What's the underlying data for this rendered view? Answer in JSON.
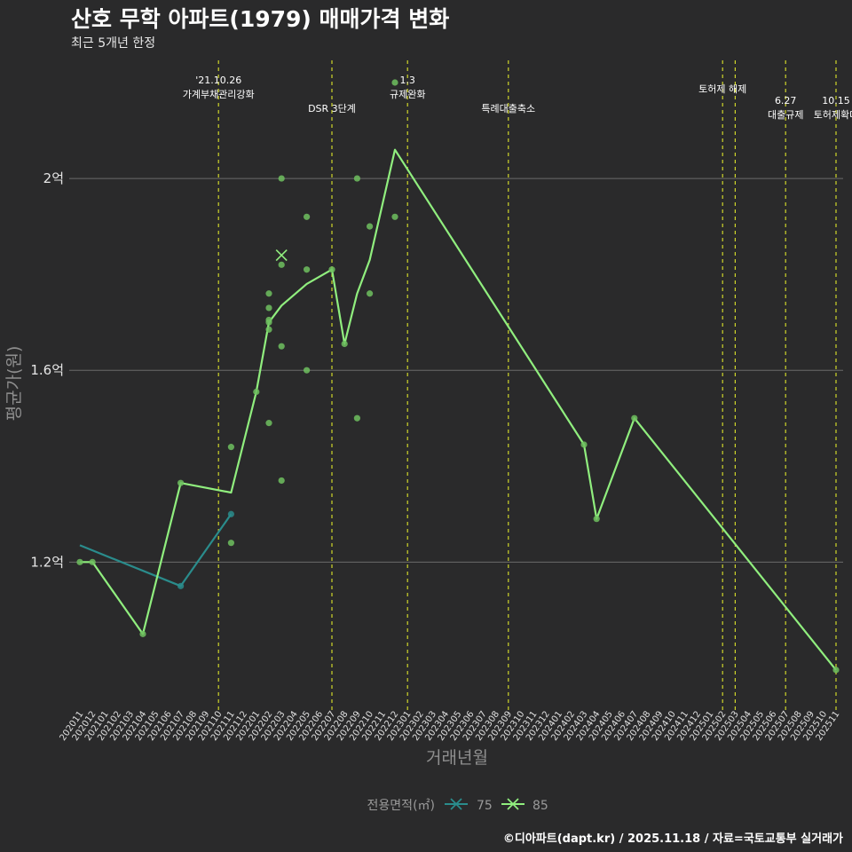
{
  "title": "산호 무학 아파트(1979) 매매가격 변화",
  "subtitle": "최근 5개년 한정",
  "caption": "©디아파트(dapt.kr) / 2025.11.18 / 자료=국토교통부 실거래가",
  "colors": {
    "background": "#2a2a2b",
    "series75": "#2a8c8c",
    "series85": "#90ee7e",
    "scatter": "#6fbf5f",
    "event_line": "#cfd62b",
    "grid": "#6b6b6b"
  },
  "chart_data": {
    "type": "line",
    "title": "산호 무학 아파트(1979) 매매가격 변화",
    "subtitle": "최근 5개년 한정",
    "xlabel": "거래년월",
    "ylabel": "평균가(원)",
    "ylim": [
      0.91,
      2.25
    ],
    "y_ticks": [
      {
        "value": 1.2,
        "label": "1.2억"
      },
      {
        "value": 1.6,
        "label": "1.6억"
      },
      {
        "value": 2.0,
        "label": "2억"
      }
    ],
    "categories": [
      "202011",
      "202012",
      "202101",
      "202102",
      "202103",
      "202104",
      "202105",
      "202106",
      "202107",
      "202108",
      "202109",
      "202110",
      "202111",
      "202112",
      "202201",
      "202202",
      "202203",
      "202204",
      "202205",
      "202206",
      "202207",
      "202208",
      "202209",
      "202210",
      "202211",
      "202212",
      "202301",
      "202302",
      "202303",
      "202304",
      "202305",
      "202306",
      "202307",
      "202308",
      "202309",
      "202310",
      "202311",
      "202312",
      "202401",
      "202402",
      "202403",
      "202404",
      "202405",
      "202406",
      "202407",
      "202408",
      "202409",
      "202410",
      "202411",
      "202412",
      "202501",
      "202502",
      "202503",
      "202504",
      "202505",
      "202506",
      "202507",
      "202508",
      "202509",
      "202510",
      "202511"
    ],
    "legend": {
      "title": "전용면적(㎡)",
      "position": "bottom"
    },
    "series": [
      {
        "name": "75",
        "points": [
          [
            0,
            1.235
          ],
          [
            8,
            1.15
          ],
          [
            12,
            1.3
          ]
        ]
      },
      {
        "name": "85",
        "points": [
          [
            0,
            1.2
          ],
          [
            1,
            1.2
          ],
          [
            5,
            1.05
          ],
          [
            8,
            1.365
          ],
          [
            12,
            1.345
          ],
          [
            14,
            1.555
          ],
          [
            15,
            1.7
          ],
          [
            16,
            1.735
          ],
          [
            18,
            1.78
          ],
          [
            20,
            1.81
          ],
          [
            21,
            1.655
          ],
          [
            22,
            1.76
          ],
          [
            23,
            1.83
          ],
          [
            25,
            2.06
          ],
          [
            40,
            1.445
          ],
          [
            41,
            1.29
          ],
          [
            44,
            1.5
          ],
          [
            60,
            0.975
          ]
        ]
      }
    ],
    "scatter": [
      {
        "series": "85",
        "points": [
          [
            0,
            1.2
          ],
          [
            1,
            1.2
          ],
          [
            5,
            1.05
          ],
          [
            8,
            1.365
          ],
          [
            12,
            1.44
          ],
          [
            12,
            1.24
          ],
          [
            14,
            1.555
          ],
          [
            15,
            1.49
          ],
          [
            15,
            1.76
          ],
          [
            15,
            1.73
          ],
          [
            15,
            1.705
          ],
          [
            15,
            1.7
          ],
          [
            15,
            1.685
          ],
          [
            16,
            2.0
          ],
          [
            16,
            1.82
          ],
          [
            16,
            1.65
          ],
          [
            16,
            1.37
          ],
          [
            18,
            1.92
          ],
          [
            18,
            1.81
          ],
          [
            18,
            1.6
          ],
          [
            20,
            1.81
          ],
          [
            21,
            1.655
          ],
          [
            22,
            2.0
          ],
          [
            22,
            1.5
          ],
          [
            23,
            1.9
          ],
          [
            23,
            1.76
          ],
          [
            25,
            2.2
          ],
          [
            25,
            1.92
          ],
          [
            40,
            1.445
          ],
          [
            41,
            1.29
          ],
          [
            44,
            1.5
          ],
          [
            60,
            0.975
          ]
        ]
      },
      {
        "series": "75",
        "points": [
          [
            8,
            1.15
          ],
          [
            12,
            1.3
          ]
        ]
      }
    ],
    "cross_markers": [
      {
        "series": "85",
        "x": 16,
        "y": 1.84
      }
    ],
    "events": [
      {
        "x": 11,
        "lines": [
          "'21.10.26",
          "가계부채관리강화"
        ],
        "row": 0
      },
      {
        "x": 20,
        "lines": [
          "DSR 3단계"
        ],
        "row": 2
      },
      {
        "x": 26,
        "lines": [
          "1.3",
          "규제완화"
        ],
        "row": 0
      },
      {
        "x": 34,
        "lines": [
          "특례대출축소"
        ],
        "row": 2
      },
      {
        "x": 51,
        "lines": [
          "토허제 해제"
        ],
        "row": 1
      },
      {
        "x": 52,
        "lines": [],
        "row": 1
      },
      {
        "x": 56,
        "lines": [
          "6.27",
          "대출규제"
        ],
        "row": 1.5
      },
      {
        "x": 60,
        "lines": [
          "10.15",
          "토허제확대"
        ],
        "row": 1.5
      }
    ]
  }
}
